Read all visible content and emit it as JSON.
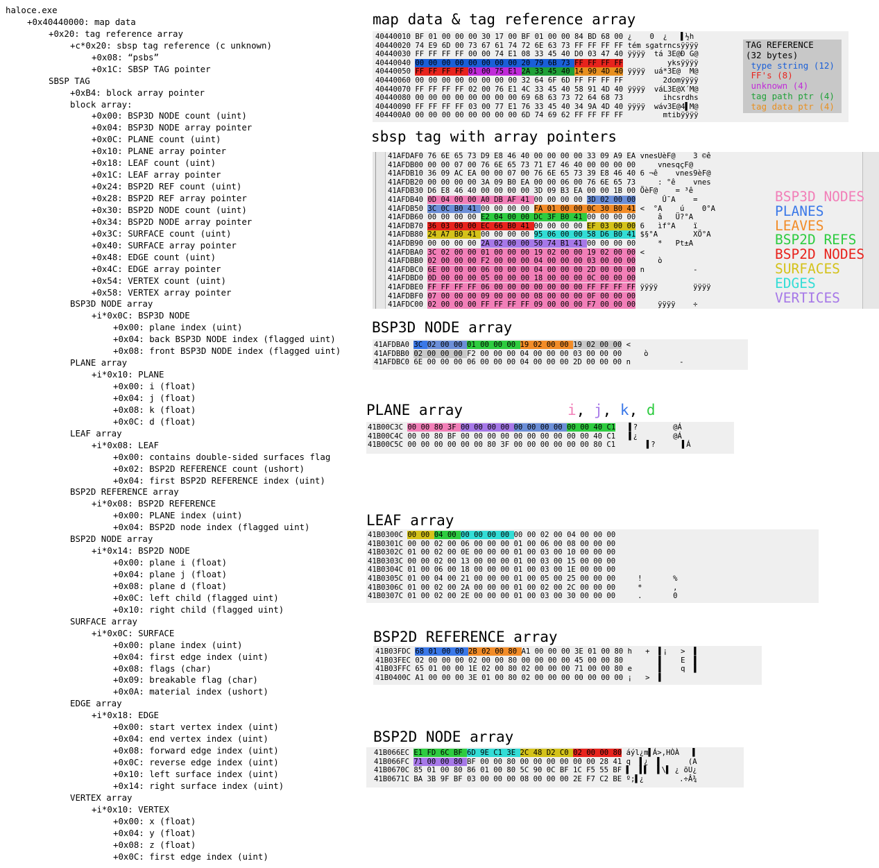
{
  "tree": [
    {
      "indent": 0,
      "text": "haloce.exe"
    },
    {
      "indent": 1,
      "text": "+0x40440000: map data"
    },
    {
      "indent": 2,
      "text": "+0x20: tag reference array"
    },
    {
      "indent": 3,
      "text": "+c*0x20: sbsp tag reference (c unknown)"
    },
    {
      "indent": 4,
      "text": "+0x08: “psbs”"
    },
    {
      "indent": 4,
      "text": "+0x1C: SBSP TAG pointer"
    },
    {
      "indent": 2,
      "text": "SBSP TAG"
    },
    {
      "indent": 3,
      "text": "+0xB4: block array pointer"
    },
    {
      "indent": 3,
      "text": "block array:"
    },
    {
      "indent": 4,
      "text": "+0x00: BSP3D NODE count (uint)"
    },
    {
      "indent": 4,
      "text": "+0x04: BSP3D NODE array pointer"
    },
    {
      "indent": 4,
      "text": "+0x0C: PLANE count (uint)"
    },
    {
      "indent": 4,
      "text": "+0x10: PLANE array pointer"
    },
    {
      "indent": 4,
      "text": "+0x18: LEAF count (uint)"
    },
    {
      "indent": 4,
      "text": "+0x1C: LEAF array pointer"
    },
    {
      "indent": 4,
      "text": "+0x24: BSP2D REF count (uint)"
    },
    {
      "indent": 4,
      "text": "+0x28: BSP2D REF array pointer"
    },
    {
      "indent": 4,
      "text": "+0x30: BSP2D NODE count (uint)"
    },
    {
      "indent": 4,
      "text": "+0x34: BSP2D NODE array pointer"
    },
    {
      "indent": 4,
      "text": "+0x3C: SURFACE count (uint)"
    },
    {
      "indent": 4,
      "text": "+0x40: SURFACE array pointer"
    },
    {
      "indent": 4,
      "text": "+0x48: EDGE count (uint)"
    },
    {
      "indent": 4,
      "text": "+0x4C: EDGE array pointer"
    },
    {
      "indent": 4,
      "text": "+0x54: VERTEX count (uint)"
    },
    {
      "indent": 4,
      "text": "+0x58: VERTEX array pointer"
    },
    {
      "indent": 3,
      "text": "BSP3D NODE array"
    },
    {
      "indent": 4,
      "text": "+i*0x0C: BSP3D NODE"
    },
    {
      "indent": 5,
      "text": "+0x00: plane index (uint)"
    },
    {
      "indent": 5,
      "text": "+0x04: back BSP3D NODE index (flagged uint)"
    },
    {
      "indent": 5,
      "text": "+0x08: front BSP3D NODE index (flagged uint)"
    },
    {
      "indent": 3,
      "text": "PLANE array"
    },
    {
      "indent": 4,
      "text": "+i*0x10: PLANE"
    },
    {
      "indent": 5,
      "text": "+0x00: i (float)"
    },
    {
      "indent": 5,
      "text": "+0x04: j (float)"
    },
    {
      "indent": 5,
      "text": "+0x08: k (float)"
    },
    {
      "indent": 5,
      "text": "+0x0C: d (float)"
    },
    {
      "indent": 3,
      "text": "LEAF array"
    },
    {
      "indent": 4,
      "text": "+i*0x08: LEAF"
    },
    {
      "indent": 5,
      "text": "+0x00: contains double-sided surfaces flag"
    },
    {
      "indent": 5,
      "text": "+0x02: BSP2D REFERENCE count (ushort)"
    },
    {
      "indent": 5,
      "text": "+0x04: first BSP2D REFERENCE index (uint)"
    },
    {
      "indent": 3,
      "text": "BSP2D REFERENCE array"
    },
    {
      "indent": 4,
      "text": "+i*0x08: BSP2D REFERENCE"
    },
    {
      "indent": 5,
      "text": "+0x00: PLANE index (uint)"
    },
    {
      "indent": 5,
      "text": "+0x04: BSP2D node index (flagged uint)"
    },
    {
      "indent": 3,
      "text": "BSP2D NODE array"
    },
    {
      "indent": 4,
      "text": "+i*0x14: BSP2D NODE"
    },
    {
      "indent": 5,
      "text": "+0x00: plane i (float)"
    },
    {
      "indent": 5,
      "text": "+0x04: plane j (float)"
    },
    {
      "indent": 5,
      "text": "+0x08: plane d (float)"
    },
    {
      "indent": 5,
      "text": "+0x0C: left child (flagged uint)"
    },
    {
      "indent": 5,
      "text": "+0x10: right child (flagged uint)"
    },
    {
      "indent": 3,
      "text": "SURFACE array"
    },
    {
      "indent": 4,
      "text": "+i*0x0C: SURFACE"
    },
    {
      "indent": 5,
      "text": "+0x00: plane index (uint)"
    },
    {
      "indent": 5,
      "text": "+0x04: first edge index (uint)"
    },
    {
      "indent": 5,
      "text": "+0x08: flags (char)"
    },
    {
      "indent": 5,
      "text": "+0x09: breakable flag (char)"
    },
    {
      "indent": 5,
      "text": "+0x0A: material index (ushort)"
    },
    {
      "indent": 3,
      "text": "EDGE array"
    },
    {
      "indent": 4,
      "text": "+i*0x18: EDGE"
    },
    {
      "indent": 5,
      "text": "+0x00: start vertex index (uint)"
    },
    {
      "indent": 5,
      "text": "+0x04: end vertex index (uint)"
    },
    {
      "indent": 5,
      "text": "+0x08: forward edge index (uint)"
    },
    {
      "indent": 5,
      "text": "+0x0C: reverse edge index (uint)"
    },
    {
      "indent": 5,
      "text": "+0x10: left surface index (uint)"
    },
    {
      "indent": 5,
      "text": "+0x14: right surface index (uint)"
    },
    {
      "indent": 3,
      "text": "VERTEX array"
    },
    {
      "indent": 4,
      "text": "+i*0x10: VERTEX"
    },
    {
      "indent": 5,
      "text": "+0x00: x (float)"
    },
    {
      "indent": 5,
      "text": "+0x04: y (float)"
    },
    {
      "indent": 5,
      "text": "+0x08: z (float)"
    },
    {
      "indent": 5,
      "text": "+0x0C: first edge index (uint)"
    }
  ],
  "titles": {
    "map": "map data & tag reference array",
    "sbsp": "sbsp tag with array pointers",
    "bsp3d": "BSP3D NODE array",
    "plane": "PLANE array",
    "leaf": "LEAF array",
    "bsp2dref": "BSP2D REFERENCE array",
    "bsp2dnode": "BSP2D NODE array"
  },
  "colors": {
    "pink": "#f27fb8",
    "blue": "#3a78e8",
    "orange": "#f28c28",
    "green": "#2ecc40",
    "red": "#e8231d",
    "yellow": "#d4c21a",
    "cyan": "#33ddd6",
    "purple": "#a678e8",
    "lightblue": "#6c8fd8",
    "gray": "#c8c8c8",
    "darkblue": "#1a5fd8",
    "magenta": "#c02bd8",
    "mapgreen": "#20a038",
    "maporange": "#e89020"
  },
  "tagref_legend": [
    {
      "text": "TAG REFERENCE",
      "color": "#000000"
    },
    {
      "text": "(32 bytes)",
      "color": "#000000"
    },
    {
      "text": " type string (12)",
      "color": "#1a5fd8"
    },
    {
      "text": " FF's (8)",
      "color": "#e8231d"
    },
    {
      "text": " unknown (4)",
      "color": "#c02bd8"
    },
    {
      "text": " tag path ptr (4)",
      "color": "#20a038"
    },
    {
      "text": " tag data ptr (4)",
      "color": "#e89020"
    }
  ],
  "sbsp_legend": [
    {
      "text": "BSP3D NODES",
      "color": "#f27fb8"
    },
    {
      "text": "PLANES",
      "color": "#3a78e8"
    },
    {
      "text": "LEAVES",
      "color": "#f28c28"
    },
    {
      "text": "BSP2D REFS",
      "color": "#2ecc40"
    },
    {
      "text": "BSP2D NODES",
      "color": "#e8231d"
    },
    {
      "text": "SURFACES",
      "color": "#d4c21a"
    },
    {
      "text": "EDGES",
      "color": "#33ddd6"
    },
    {
      "text": "VERTICES",
      "color": "#a678e8"
    }
  ],
  "plane_letters": [
    {
      "text": "i",
      "color": "#f27fb8"
    },
    {
      "text": ", ",
      "color": "#000000"
    },
    {
      "text": "j",
      "color": "#a678e8"
    },
    {
      "text": ", ",
      "color": "#000000"
    },
    {
      "text": "k",
      "color": "#3a78e8"
    },
    {
      "text": ", ",
      "color": "#000000"
    },
    {
      "text": "d",
      "color": "#2ecc40"
    }
  ],
  "hex": {
    "map": [
      {
        "addr": "40440010",
        "bytes": "BF 01 00 00 00 30 17 00 BF 01 00 00 84 BD 68 00",
        "ascii": "¿    0  ¿   ▌½h"
      },
      {
        "addr": "40440020",
        "bytes": "74 E9 6D 00 73 67 61 74 72 6E 63 73 FF FF FF FF",
        "ascii": "tém sgatrncsÿÿÿÿ"
      },
      {
        "addr": "40440030",
        "bytes": "FF FF FF FF 00 00 74 E1 08 33 45 40 D0 03 47 40",
        "ascii": "ÿÿÿÿ  tá 3E@Ð G@"
      },
      {
        "addr": "40440040",
        "bytes": "00 00 00 00 00 00 00 00 20 79 6B 73 FF FF FF FF",
        "ascii": "         yksÿÿÿÿ",
        "hl": [
          [
            0,
            12,
            "darkblue"
          ],
          [
            12,
            16,
            "red"
          ]
        ]
      },
      {
        "addr": "40440050",
        "bytes": "FF FF FF FF 01 00 75 E1 2A 33 45 40 14 90 4D 40",
        "ascii": "ÿÿÿÿ  uá*3E@  M@",
        "hl": [
          [
            0,
            4,
            "red"
          ],
          [
            4,
            8,
            "magenta"
          ],
          [
            8,
            12,
            "mapgreen"
          ],
          [
            12,
            16,
            "maporange"
          ]
        ]
      },
      {
        "addr": "40440060",
        "bytes": "00 00 00 00 00 00 00 00 32 64 6F 6D FF FF FF FF",
        "ascii": "        2domÿÿÿÿ"
      },
      {
        "addr": "40440070",
        "bytes": "FF FF FF FF 02 00 76 E1 4C 33 45 40 58 91 4D 40",
        "ascii": "ÿÿÿÿ  váL3E@X´M@"
      },
      {
        "addr": "40440080",
        "bytes": "00 00 00 00 00 00 00 00 69 68 63 73 72 64 68 73",
        "ascii": "        ihcsrdhs"
      },
      {
        "addr": "40440090",
        "bytes": "FF FF FF FF 03 00 77 E1 76 33 45 40 34 9A 4D 40",
        "ascii": "ÿÿÿÿ  wáv3E@4▌M@"
      },
      {
        "addr": "404400A0",
        "bytes": "00 00 00 00 00 00 00 00 6D 74 69 62 FF FF FF FF",
        "ascii": "        mtibÿÿÿÿ"
      }
    ],
    "sbsp": [
      {
        "addr": "41AFDAF0",
        "bytes": "76 6E 65 73 D9 E8 46 40 00 00 00 00 33 09 A9 EA",
        "ascii": "vnesÙèF@    3 ©ê"
      },
      {
        "addr": "41AFDB00",
        "bytes": "00 00 07 00 76 6E 65 73 71 E7 46 40 00 00 00 00",
        "ascii": "    vnesqçF@"
      },
      {
        "addr": "41AFDB10",
        "bytes": "36 09 AC EA 00 00 07 00 76 6E 65 73 39 E8 46 40",
        "ascii": "6 ¬ê    vnes9èF@"
      },
      {
        "addr": "41AFDB20",
        "bytes": "00 00 00 00 3A 09 B0 EA 00 00 06 00 76 6E 65 73",
        "ascii": "    : °ê    vnes"
      },
      {
        "addr": "41AFDB30",
        "bytes": "D6 E8 46 40 00 00 00 00 3D 09 B3 EA 00 00 1B 00",
        "ascii": "ÖèF@    = ³ê"
      },
      {
        "addr": "41AFDB40",
        "bytes": "0D 04 00 00 A0 DB AF 41 00 00 00 00 3D 02 00 00",
        "ascii": "     Û¯A    =",
        "hl": [
          [
            0,
            4,
            "pink"
          ],
          [
            4,
            8,
            "pink"
          ],
          [
            12,
            16,
            "lightblue"
          ]
        ]
      },
      {
        "addr": "41AFDB50",
        "bytes": "3C 0C B0 41 00 00 00 00 FA 01 00 00 0C 30 B0 41",
        "ascii": "<  °A    ú    0°A",
        "hl": [
          [
            0,
            4,
            "lightblue"
          ],
          [
            8,
            12,
            "orange"
          ],
          [
            12,
            16,
            "orange"
          ]
        ]
      },
      {
        "addr": "41AFDB60",
        "bytes": "00 00 00 00 E2 04 00 00 DC 3F B0 41 00 00 00 00",
        "ascii": "    â   Ü?°A",
        "hl": [
          [
            4,
            8,
            "green"
          ],
          [
            8,
            12,
            "green"
          ]
        ]
      },
      {
        "addr": "41AFDB70",
        "bytes": "36 03 00 00 EC 66 B0 41 00 00 00 00 EF 03 00 00",
        "ascii": "6   ìf°A    ï",
        "hl": [
          [
            0,
            4,
            "red"
          ],
          [
            4,
            8,
            "red"
          ],
          [
            12,
            16,
            "yellow"
          ]
        ]
      },
      {
        "addr": "41AFDB80",
        "bytes": "24 A7 B0 41 00 00 00 00 95 06 00 00 58 D6 B0 41",
        "ascii": "$§°A        XÖ°A",
        "hl": [
          [
            0,
            4,
            "yellow"
          ],
          [
            8,
            12,
            "cyan"
          ],
          [
            12,
            16,
            "cyan"
          ]
        ]
      },
      {
        "addr": "41AFDB90",
        "bytes": "00 00 00 00 2A 02 00 00 50 74 B1 41 00 00 00 00",
        "ascii": "    *   Pt±A",
        "hl": [
          [
            4,
            8,
            "purple"
          ],
          [
            8,
            12,
            "purple"
          ]
        ]
      },
      {
        "addr": "41AFDBA0",
        "bytes": "3C 02 00 00 01 00 00 00 19 02 00 00 19 02 00 00",
        "ascii": "<",
        "hl": [
          [
            0,
            16,
            "pink"
          ]
        ]
      },
      {
        "addr": "41AFDBB0",
        "bytes": "02 00 00 00 F2 00 00 00 04 00 00 00 03 00 00 00",
        "ascii": "    ò",
        "hl": [
          [
            0,
            16,
            "pink"
          ]
        ]
      },
      {
        "addr": "41AFDBC0",
        "bytes": "6E 00 00 00 06 00 00 00 04 00 00 00 2D 00 00 00",
        "ascii": "n           -",
        "hl": [
          [
            0,
            16,
            "pink"
          ]
        ]
      },
      {
        "addr": "41AFDBD0",
        "bytes": "0D 00 00 00 05 00 00 00 18 00 00 00 0C 00 00 00",
        "ascii": "",
        "hl": [
          [
            0,
            16,
            "pink"
          ]
        ]
      },
      {
        "addr": "41AFDBE0",
        "bytes": "FF FF FF FF 06 00 00 00 00 00 00 00 FF FF FF FF",
        "ascii": "ÿÿÿÿ        ÿÿÿÿ",
        "hl": [
          [
            0,
            16,
            "pink"
          ]
        ]
      },
      {
        "addr": "41AFDBF0",
        "bytes": "07 00 00 00 09 00 00 00 08 00 00 00 0F 00 00 00",
        "ascii": "",
        "hl": [
          [
            0,
            16,
            "pink"
          ]
        ]
      },
      {
        "addr": "41AFDC00",
        "bytes": "02 00 00 00 FF FF FF FF 09 00 00 00 F7 00 00 00",
        "ascii": "    ÿÿÿÿ    ÷",
        "hl": [
          [
            0,
            16,
            "pink"
          ]
        ]
      }
    ],
    "bsp3d": [
      {
        "addr": "41AFDBA0",
        "bytes": "3C 02 00 00 01 00 00 00 19 02 00 00 19 02 00 00",
        "ascii": "<",
        "hl": [
          [
            0,
            1,
            "blue"
          ],
          [
            1,
            4,
            "lightblue"
          ],
          [
            4,
            8,
            "green"
          ],
          [
            8,
            12,
            "orange"
          ],
          [
            12,
            16,
            "gray"
          ]
        ]
      },
      {
        "addr": "41AFDBB0",
        "bytes": "02 00 00 00 F2 00 00 00 04 00 00 00 03 00 00 00",
        "ascii": "    ò",
        "hl": [
          [
            0,
            4,
            "gray"
          ]
        ]
      },
      {
        "addr": "41AFDBC0",
        "bytes": "6E 00 00 00 06 00 00 00 04 00 00 00 2D 00 00 00",
        "ascii": "n           -"
      }
    ],
    "plane": [
      {
        "addr": "41B00C3C",
        "bytes": "00 00 80 3F 00 00 00 00 00 00 00 00 00 00 40 C1",
        "ascii": "  ▌?        @Á",
        "hl": [
          [
            0,
            4,
            "pink"
          ],
          [
            4,
            8,
            "purple"
          ],
          [
            8,
            12,
            "lightblue"
          ],
          [
            12,
            16,
            "green"
          ]
        ]
      },
      {
        "addr": "41B00C4C",
        "bytes": "00 00 80 BF 00 00 00 00 00 00 00 00 00 00 40 C1",
        "ascii": "  ▌¿        @Á"
      },
      {
        "addr": "41B00C5C",
        "bytes": "00 00 00 00 00 00 80 3F 00 00 00 00 00 00 80 C1",
        "ascii": "      ▌?      ▌Á"
      }
    ],
    "leaf": [
      {
        "addr": "41B0300C",
        "bytes": "00 00 04 00 00 00 00 00 00 00 02 00 04 00 00 00",
        "ascii": "",
        "hl": [
          [
            0,
            2,
            "yellow"
          ],
          [
            2,
            4,
            "green"
          ],
          [
            4,
            8,
            "cyan"
          ]
        ]
      },
      {
        "addr": "41B0301C",
        "bytes": "00 00 02 00 06 00 00 00 01 00 06 00 08 00 00 00",
        "ascii": ""
      },
      {
        "addr": "41B0302C",
        "bytes": "01 00 02 00 0E 00 00 00 01 00 03 00 10 00 00 00",
        "ascii": ""
      },
      {
        "addr": "41B0303C",
        "bytes": "00 00 02 00 13 00 00 00 01 00 03 00 15 00 00 00",
        "ascii": ""
      },
      {
        "addr": "41B0304C",
        "bytes": "01 00 06 00 18 00 00 00 01 00 03 00 1E 00 00 00",
        "ascii": ""
      },
      {
        "addr": "41B0305C",
        "bytes": "01 00 04 00 21 00 00 00 01 00 05 00 25 00 00 00",
        "ascii": "    !       %"
      },
      {
        "addr": "41B0306C",
        "bytes": "01 00 02 00 2A 00 00 00 01 00 02 00 2C 00 00 00",
        "ascii": "    *       ,"
      },
      {
        "addr": "41B0307C",
        "bytes": "01 00 02 00 2E 00 00 00 01 00 03 00 30 00 00 00",
        "ascii": "    .       0"
      }
    ],
    "bsp2dref": [
      {
        "addr": "41B03FDC",
        "bytes": "68 01 00 00 2B 02 00 80 A1 00 00 00 3E 01 00 80",
        "ascii": "h   +  ▌¡   >  ▌",
        "hl": [
          [
            0,
            4,
            "blue"
          ],
          [
            4,
            8,
            "orange"
          ]
        ]
      },
      {
        "addr": "41B03FEC",
        "bytes": "02 00 00 00 02 00 00 80 00 00 00 00 45 00 00 80",
        "ascii": "       ▌    E  ▌"
      },
      {
        "addr": "41B03FFC",
        "bytes": "65 01 00 00 1E 02 00 80 02 00 00 00 71 00 00 80",
        "ascii": "e      ▌    q  ▌"
      },
      {
        "addr": "41B0400C",
        "bytes": "A1 00 00 00 3E 01 00 80 02 00 00 00 00 00 00 00",
        "ascii": "¡   >  ▌"
      }
    ],
    "bsp2dnode": [
      {
        "addr": "41B066EC",
        "bytes": "E1 FD 6C BF 6D 9E C1 3E 2C 48 D2 C0 02 00 00 80",
        "ascii": "áýl¿m▌Á>,HÒÀ   ▌",
        "hl": [
          [
            0,
            4,
            "green"
          ],
          [
            4,
            8,
            "cyan"
          ],
          [
            8,
            12,
            "yellow"
          ],
          [
            12,
            16,
            "red"
          ]
        ]
      },
      {
        "addr": "41B066FC",
        "bytes": "71 00 00 80 BF 00 00 80 00 00 00 00 00 00 28 41",
        "ascii": "q  ▌¿  ▌      (A",
        "hl": [
          [
            0,
            4,
            "purple"
          ]
        ]
      },
      {
        "addr": "41B0670C",
        "bytes": "85 01 00 80 86 01 00 80 5C 90 0C BF 1C F5 55 BF",
        "ascii": "▌  ▌▌  ▌\\▌ ¿ õU¿"
      },
      {
        "addr": "41B0671C",
        "bytes": "BA 3B 9F BF 03 00 00 00 08 00 00 00 2E F7 C2 BE",
        "ascii": "º;▌¿        .÷Â¾"
      }
    ]
  }
}
